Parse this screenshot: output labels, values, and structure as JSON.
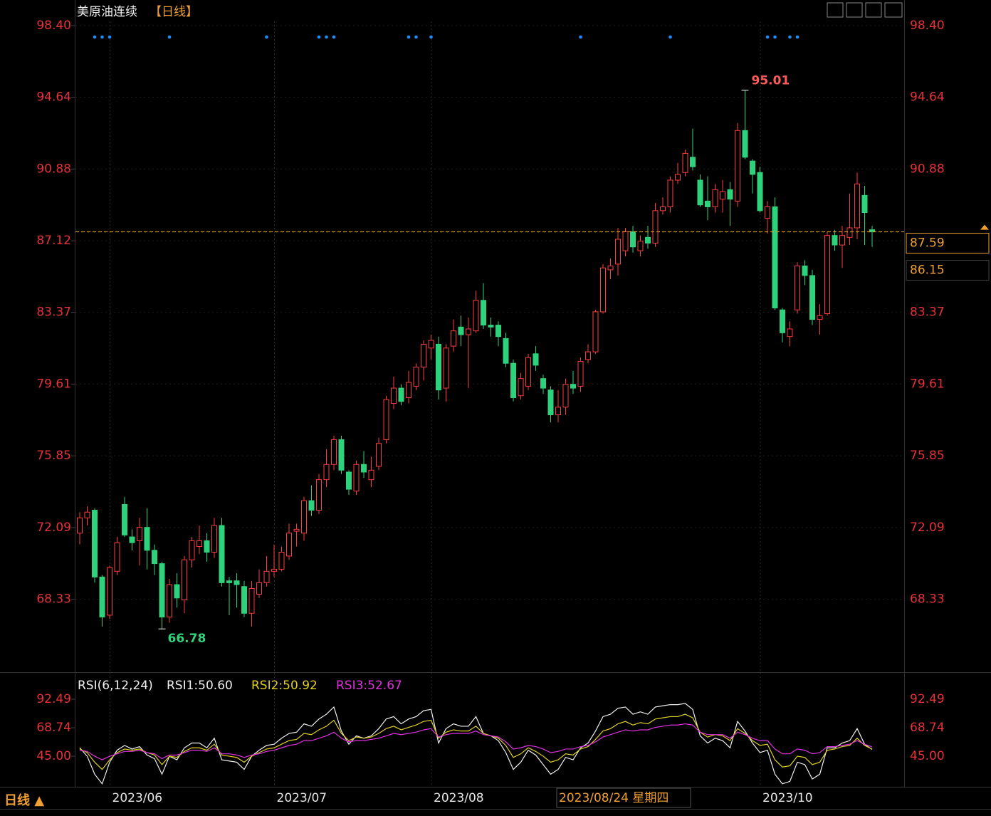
{
  "chart_data": [
    {
      "type": "candlestick",
      "title": "美原油连续",
      "period": "【日线】",
      "categories": [
        null,
        null,
        null,
        null,
        "2023/06",
        null,
        null,
        null,
        null,
        null,
        null,
        null,
        null,
        null,
        null,
        null,
        null,
        null,
        null,
        null,
        null,
        null,
        null,
        null,
        null,
        null,
        "2023/07",
        null,
        null,
        null,
        null,
        null,
        null,
        null,
        null,
        null,
        null,
        null,
        null,
        null,
        null,
        null,
        null,
        null,
        null,
        null,
        null,
        "2023/08",
        null,
        null,
        null,
        null,
        null,
        null,
        null,
        null,
        null,
        null,
        null,
        null,
        null,
        null,
        null,
        null,
        null,
        null,
        null,
        null,
        null,
        null,
        null,
        null,
        null,
        null,
        null,
        null,
        null,
        null,
        null,
        null,
        null,
        null,
        null,
        null,
        null,
        null,
        null,
        null,
        null,
        null,
        null,
        "2023/10",
        null,
        null,
        null,
        null,
        null,
        null,
        null,
        null,
        null,
        null,
        null,
        null,
        null,
        null,
        null
      ],
      "open": [
        71.8,
        72.6,
        73.0,
        69.5,
        67.5,
        69.8,
        73.3,
        71.6,
        71.4,
        72.1,
        70.9,
        70.2,
        67.4,
        69.1,
        68.3,
        70.4,
        71.1,
        71.4,
        70.8,
        72.2,
        69.3,
        69.3,
        69.0,
        67.6,
        68.6,
        69.2,
        69.8,
        69.9,
        70.6,
        71.9,
        71.8,
        73.5,
        73.0,
        74.6,
        75.4,
        76.7,
        75.0,
        74.0,
        75.4,
        74.6,
        75.3,
        76.7,
        78.6,
        79.4,
        78.9,
        79.5,
        80.5,
        81.5,
        81.7,
        79.4,
        81.6,
        82.6,
        82.2,
        82.4,
        84.0,
        82.7,
        82.7,
        82.0,
        80.7,
        79.0,
        79.5,
        81.2,
        79.9,
        79.3,
        78.0,
        78.4,
        79.6,
        79.5,
        80.9,
        81.3,
        83.4,
        85.6,
        85.9,
        86.6,
        87.6,
        86.6,
        87.3,
        87.0,
        88.7,
        88.9,
        90.3,
        90.7,
        91.5,
        90.3,
        89.2,
        88.9,
        89.3,
        89.8,
        89.2,
        92.9,
        91.3,
        90.7,
        88.3,
        88.9,
        83.5,
        82.1,
        83.5,
        85.8,
        85.3,
        83.0,
        83.3,
        87.4,
        86.9,
        87.3,
        87.8,
        89.5,
        87.7
      ],
      "high": [
        72.9,
        73.2,
        73.1,
        69.6,
        70.1,
        71.6,
        73.7,
        72.0,
        72.6,
        73.1,
        71.2,
        70.3,
        69.4,
        69.7,
        70.6,
        71.6,
        72.2,
        71.8,
        72.6,
        72.6,
        69.5,
        69.7,
        69.3,
        69.3,
        69.9,
        70.6,
        71.2,
        71.1,
        72.3,
        72.3,
        73.7,
        74.3,
        74.9,
        76.2,
        76.9,
        76.9,
        75.1,
        75.6,
        76.1,
        75.8,
        76.8,
        79.0,
        80.0,
        79.6,
        80.3,
        80.7,
        81.9,
        82.2,
        82.1,
        81.7,
        83.0,
        83.2,
        83.1,
        84.5,
        84.9,
        83.1,
        82.9,
        82.3,
        80.9,
        80.2,
        81.2,
        81.6,
        80.1,
        79.5,
        79.3,
        79.9,
        80.3,
        81.0,
        81.7,
        83.5,
        85.9,
        86.2,
        87.8,
        87.8,
        87.9,
        87.4,
        87.9,
        89.1,
        89.4,
        90.5,
        91.2,
        91.9,
        93.0,
        90.6,
        90.5,
        90.1,
        90.3,
        90.2,
        93.3,
        95.01,
        91.4,
        91.0,
        89.2,
        89.4,
        83.6,
        82.9,
        86.0,
        86.1,
        85.6,
        83.8,
        87.6,
        87.7,
        87.9,
        89.6,
        90.7,
        90.0,
        87.9
      ],
      "low": [
        71.2,
        72.2,
        69.2,
        66.9,
        67.3,
        69.6,
        71.6,
        70.9,
        70.1,
        69.9,
        69.6,
        66.78,
        67.1,
        67.9,
        67.6,
        70.0,
        70.7,
        70.3,
        70.5,
        69.0,
        67.5,
        67.9,
        67.4,
        66.9,
        68.4,
        69.0,
        69.5,
        69.8,
        70.4,
        71.1,
        71.4,
        72.7,
        72.8,
        74.2,
        75.1,
        74.9,
        73.8,
        73.8,
        74.7,
        74.2,
        75.1,
        76.5,
        78.3,
        78.5,
        78.6,
        79.3,
        79.8,
        80.9,
        78.8,
        78.7,
        81.3,
        81.6,
        79.4,
        82.3,
        82.5,
        82.1,
        81.6,
        80.5,
        78.7,
        78.8,
        79.3,
        80.3,
        79.1,
        77.6,
        77.6,
        78.0,
        79.1,
        79.2,
        80.7,
        81.2,
        83.3,
        85.1,
        85.3,
        86.3,
        86.5,
        86.3,
        86.7,
        86.8,
        88.5,
        88.6,
        90.1,
        90.5,
        90.8,
        88.9,
        88.2,
        88.6,
        88.6,
        87.9,
        88.9,
        91.4,
        89.6,
        88.6,
        87.5,
        83.5,
        81.8,
        81.6,
        83.3,
        84.8,
        82.7,
        82.2,
        83.2,
        86.6,
        85.7,
        86.9,
        87.2,
        86.9,
        86.8
      ],
      "close": [
        72.6,
        72.9,
        69.5,
        67.4,
        70.0,
        71.3,
        71.7,
        71.3,
        72.1,
        70.9,
        70.2,
        67.4,
        69.1,
        68.4,
        70.4,
        71.4,
        71.4,
        70.8,
        72.2,
        69.2,
        69.2,
        69.1,
        67.6,
        68.9,
        69.2,
        69.8,
        69.9,
        70.8,
        71.8,
        72.0,
        73.5,
        73.0,
        74.6,
        75.4,
        76.7,
        75.1,
        74.1,
        75.4,
        75.0,
        75.1,
        76.5,
        78.8,
        79.4,
        78.7,
        79.7,
        80.5,
        81.7,
        81.9,
        79.3,
        81.5,
        82.4,
        82.2,
        82.5,
        84.0,
        82.7,
        82.6,
        82.1,
        80.7,
        78.9,
        79.9,
        81.0,
        80.6,
        79.4,
        78.0,
        78.4,
        79.6,
        79.4,
        80.8,
        81.3,
        83.4,
        85.7,
        85.8,
        87.2,
        87.6,
        86.8,
        87.1,
        87.0,
        88.7,
        88.9,
        90.3,
        90.6,
        91.7,
        91.0,
        89.0,
        88.9,
        89.8,
        89.7,
        89.3,
        92.9,
        91.5,
        90.6,
        88.7,
        88.9,
        83.6,
        82.3,
        82.5,
        85.8,
        85.3,
        83.0,
        83.2,
        87.4,
        86.9,
        87.4,
        87.8,
        90.1,
        88.6,
        87.59
      ],
      "ylim": [
        64.55,
        98.62
      ],
      "yticks": [
        {
          "value": 98.4,
          "label": "98.40"
        },
        94.64,
        90.88,
        87.12,
        83.37,
        79.61,
        75.85,
        72.09,
        68.33
      ],
      "grid": true,
      "up_color": "#ff3c3c",
      "down_color": "#2fd27c",
      "max_label": 95.01,
      "min_label": 66.78,
      "last_price": 87.59,
      "cursor_price": 86.15,
      "signals": [
        2,
        3,
        4,
        12,
        25,
        32,
        33,
        34,
        44,
        45,
        47,
        67,
        79,
        92,
        93,
        95,
        96
      ],
      "signal_color": "#1e8fff",
      "crosshair_label": "2023/08/24 星期四",
      "period_button": "日线 ▲"
    },
    {
      "type": "line",
      "title": "RSI(6,12,24)",
      "series": [
        {
          "name": "RSI1:50.60",
          "color": "#f0f0f0",
          "values": [
            52,
            45,
            30,
            22,
            40,
            50,
            54,
            51,
            53,
            46,
            43,
            30,
            45,
            42,
            52,
            56,
            56,
            52,
            60,
            42,
            41,
            40,
            34,
            45,
            50,
            54,
            55,
            60,
            64,
            65,
            72,
            70,
            76,
            80,
            86,
            66,
            55,
            62,
            60,
            62,
            68,
            76,
            78,
            72,
            76,
            78,
            83,
            84,
            56,
            68,
            72,
            70,
            70,
            78,
            64,
            62,
            58,
            48,
            34,
            40,
            50,
            46,
            38,
            30,
            34,
            44,
            42,
            52,
            56,
            66,
            78,
            80,
            85,
            86,
            80,
            82,
            80,
            86,
            87,
            88,
            88,
            89,
            84,
            62,
            56,
            60,
            58,
            52,
            74,
            66,
            56,
            48,
            50,
            30,
            22,
            24,
            40,
            38,
            26,
            30,
            52,
            52,
            56,
            58,
            68,
            55,
            50.6
          ]
        },
        {
          "name": "RSI2:50.92",
          "color": "#e0d020",
          "values": [
            51,
            48,
            40,
            34,
            42,
            48,
            51,
            50,
            51,
            48,
            46,
            38,
            45,
            44,
            49,
            52,
            52,
            50,
            55,
            46,
            45,
            44,
            40,
            45,
            48,
            51,
            52,
            55,
            58,
            59,
            64,
            63,
            67,
            70,
            75,
            64,
            58,
            61,
            60,
            61,
            64,
            68,
            70,
            67,
            69,
            71,
            74,
            75,
            60,
            65,
            67,
            66,
            66,
            70,
            64,
            62,
            60,
            54,
            44,
            47,
            52,
            49,
            45,
            40,
            42,
            47,
            46,
            51,
            53,
            59,
            66,
            68,
            72,
            74,
            71,
            73,
            72,
            76,
            77,
            78,
            78,
            80,
            77,
            65,
            61,
            63,
            62,
            58,
            68,
            64,
            58,
            54,
            55,
            42,
            36,
            37,
            45,
            44,
            38,
            40,
            50,
            51,
            53,
            54,
            60,
            54,
            50.92
          ]
        },
        {
          "name": "RSI3:52.67",
          "color": "#e030e0",
          "values": [
            50,
            49,
            45,
            42,
            45,
            47,
            49,
            49,
            50,
            48,
            47,
            43,
            46,
            46,
            48,
            50,
            50,
            49,
            52,
            47,
            47,
            46,
            44,
            46,
            47,
            49,
            50,
            52,
            54,
            55,
            58,
            58,
            60,
            62,
            65,
            60,
            57,
            58,
            58,
            59,
            60,
            62,
            64,
            63,
            64,
            65,
            67,
            68,
            61,
            63,
            64,
            64,
            64,
            66,
            63,
            62,
            61,
            57,
            51,
            52,
            54,
            53,
            51,
            48,
            49,
            51,
            51,
            53,
            54,
            57,
            61,
            63,
            65,
            67,
            66,
            67,
            67,
            69,
            70,
            71,
            71,
            72,
            71,
            65,
            63,
            63,
            63,
            60,
            65,
            63,
            60,
            58,
            58,
            51,
            47,
            47,
            51,
            50,
            47,
            48,
            53,
            53,
            54,
            55,
            58,
            55,
            52.67
          ]
        }
      ],
      "ylim": [
        19.5,
        111.5
      ],
      "yticks": [
        92.49,
        68.74,
        {
          "value": 45,
          "label": "45.00"
        }
      ]
    }
  ]
}
